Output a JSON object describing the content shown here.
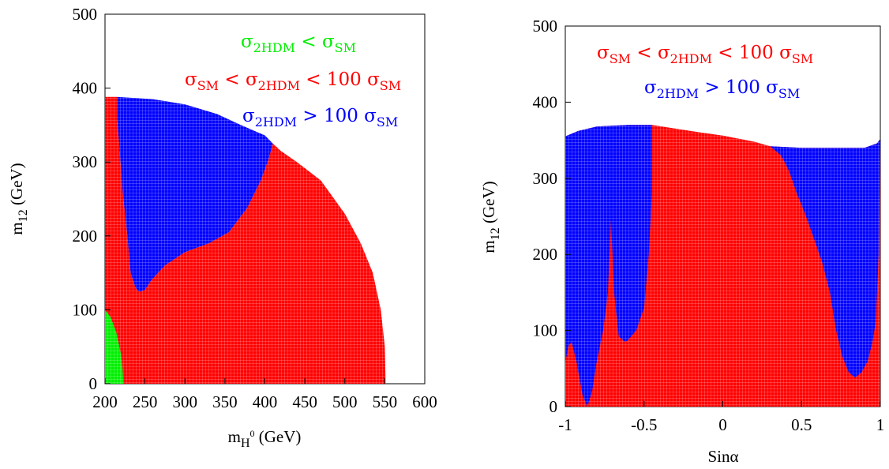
{
  "chart_data": [
    {
      "type": "scatter",
      "title": "",
      "xlabel": "m",
      "xlabel_sub": "H",
      "xlabel_sup": "0",
      "xlabel_unit": " (GeV)",
      "ylabel": "m",
      "ylabel_sub": "12",
      "ylabel_unit": " (GeV)",
      "xlim": [
        200,
        600
      ],
      "ylim": [
        0,
        500
      ],
      "xticks": [
        "200",
        "250",
        "300",
        "350",
        "400",
        "450",
        "500",
        "550",
        "600"
      ],
      "yticks": [
        "0",
        "100",
        "200",
        "300",
        "400",
        "500"
      ],
      "legend_placement": "top-right",
      "legend": [
        {
          "base": "σ",
          "sub": "2HDM",
          "mid": " < σ",
          "sub2": "SM",
          "tail": "",
          "color": "#00ee00"
        },
        {
          "base": "σ",
          "sub": "SM",
          "mid": " < σ",
          "sub2": "2HDM",
          "tail": " < 100 σ",
          "sub3": "SM",
          "color": "#ff0000"
        },
        {
          "base": "σ",
          "sub": "2HDM",
          "mid": " > 100 σ",
          "sub2": "SM",
          "tail": "",
          "color": "#0000ff"
        }
      ],
      "regions": [
        {
          "name": "σ2HDM > 100 σSM",
          "color": "#0000ff",
          "boundary": [
            [
              215,
              388
            ],
            [
              260,
              385
            ],
            [
              300,
              378
            ],
            [
              340,
              365
            ],
            [
              370,
              350
            ],
            [
              400,
              336
            ],
            [
              410,
              325
            ],
            [
              405,
              305
            ],
            [
              395,
              275
            ],
            [
              378,
              238
            ],
            [
              355,
              205
            ],
            [
              330,
              190
            ],
            [
              300,
              178
            ],
            [
              275,
              160
            ],
            [
              258,
              140
            ],
            [
              250,
              127
            ],
            [
              243,
              124
            ],
            [
              238,
              130
            ],
            [
              232,
              150
            ],
            [
              228,
              200
            ],
            [
              222,
              260
            ],
            [
              218,
              320
            ],
            [
              215,
              360
            ],
            [
              215,
              388
            ]
          ]
        },
        {
          "name": "σSM < σ2HDM < 100 σSM",
          "color": "#ff0000",
          "boundary": [
            [
              200,
              0
            ],
            [
              200,
              388
            ],
            [
              215,
              388
            ],
            [
              215,
              360
            ],
            [
              218,
              320
            ],
            [
              222,
              260
            ],
            [
              228,
              200
            ],
            [
              232,
              150
            ],
            [
              238,
              130
            ],
            [
              243,
              124
            ],
            [
              250,
              127
            ],
            [
              258,
              140
            ],
            [
              275,
              160
            ],
            [
              300,
              178
            ],
            [
              330,
              190
            ],
            [
              355,
              205
            ],
            [
              378,
              238
            ],
            [
              395,
              275
            ],
            [
              405,
              305
            ],
            [
              410,
              325
            ],
            [
              420,
              315
            ],
            [
              440,
              300
            ],
            [
              470,
              275
            ],
            [
              500,
              230
            ],
            [
              520,
              190
            ],
            [
              535,
              150
            ],
            [
              545,
              100
            ],
            [
              550,
              50
            ],
            [
              551,
              0
            ],
            [
              200,
              0
            ]
          ]
        },
        {
          "name": "σ2HDM < σSM",
          "color": "#00ee00",
          "boundary": [
            [
              200,
              0
            ],
            [
              200,
              100
            ],
            [
              207,
              90
            ],
            [
              214,
              70
            ],
            [
              220,
              40
            ],
            [
              222,
              20
            ],
            [
              223,
              0
            ],
            [
              200,
              0
            ]
          ]
        }
      ]
    },
    {
      "type": "scatter",
      "title": "",
      "xlabel": "Sinα",
      "ylabel": "m",
      "ylabel_sub": "12",
      "ylabel_unit": " (GeV)",
      "xlim": [
        -1,
        1
      ],
      "ylim": [
        0,
        500
      ],
      "xticks": [
        "-1",
        "-0.5",
        "0",
        "0.5",
        "1"
      ],
      "xtick_values": [
        -1,
        -0.5,
        0,
        0.5,
        1
      ],
      "yticks": [
        "0",
        "100",
        "200",
        "300",
        "400",
        "500"
      ],
      "legend_placement": "top-right",
      "legend": [
        {
          "base": "σ",
          "sub": "SM",
          "mid": " < σ",
          "sub2": "2HDM",
          "tail": " < 100 σ",
          "sub3": "SM",
          "color": "#ff0000"
        },
        {
          "base": "σ",
          "sub": "2HDM",
          "mid": " > 100 σ",
          "sub2": "SM",
          "tail": "",
          "color": "#0000ff"
        }
      ],
      "regions": [
        {
          "name": "σSM < σ2HDM < 100 σSM",
          "color": "#ff0000",
          "boundary": [
            [
              -1,
              0
            ],
            [
              -1,
              355
            ],
            [
              -0.92,
              362
            ],
            [
              -0.8,
              368
            ],
            [
              -0.6,
              370
            ],
            [
              -0.45,
              370
            ],
            [
              -0.2,
              362
            ],
            [
              0,
              356
            ],
            [
              0.2,
              348
            ],
            [
              0.3,
              342
            ],
            [
              0.5,
              340
            ],
            [
              0.7,
              340
            ],
            [
              0.9,
              340
            ],
            [
              0.98,
              346
            ],
            [
              1,
              352
            ],
            [
              1,
              0
            ],
            [
              -1,
              0
            ]
          ]
        },
        {
          "name": "σ2HDM > 100 σSM (left)",
          "color": "#0000ff",
          "boundary": [
            [
              -1,
              58
            ],
            [
              -1,
              355
            ],
            [
              -0.92,
              362
            ],
            [
              -0.8,
              368
            ],
            [
              -0.6,
              370
            ],
            [
              -0.45,
              370
            ],
            [
              -0.45,
              280
            ],
            [
              -0.47,
              200
            ],
            [
              -0.5,
              130
            ],
            [
              -0.55,
              100
            ],
            [
              -0.6,
              88
            ],
            [
              -0.62,
              85
            ],
            [
              -0.66,
              92
            ],
            [
              -0.69,
              150
            ],
            [
              -0.71,
              245
            ],
            [
              -0.73,
              150
            ],
            [
              -0.76,
              100
            ],
            [
              -0.8,
              60
            ],
            [
              -0.83,
              20
            ],
            [
              -0.86,
              0
            ],
            [
              -0.89,
              15
            ],
            [
              -0.93,
              60
            ],
            [
              -0.96,
              85
            ],
            [
              -0.98,
              80
            ],
            [
              -1,
              58
            ]
          ]
        },
        {
          "name": "σ2HDM > 100 σSM (right)",
          "color": "#0000ff",
          "boundary": [
            [
              0.3,
              342
            ],
            [
              0.5,
              340
            ],
            [
              0.7,
              340
            ],
            [
              0.9,
              340
            ],
            [
              0.98,
              346
            ],
            [
              1,
              352
            ],
            [
              0.99,
              200
            ],
            [
              0.97,
              110
            ],
            [
              0.95,
              85
            ],
            [
              0.92,
              60
            ],
            [
              0.88,
              45
            ],
            [
              0.84,
              38
            ],
            [
              0.8,
              45
            ],
            [
              0.76,
              65
            ],
            [
              0.72,
              100
            ],
            [
              0.68,
              150
            ],
            [
              0.63,
              190
            ],
            [
              0.58,
              220
            ],
            [
              0.52,
              255
            ],
            [
              0.47,
              280
            ],
            [
              0.42,
              310
            ],
            [
              0.37,
              330
            ],
            [
              0.3,
              342
            ]
          ]
        }
      ]
    }
  ]
}
